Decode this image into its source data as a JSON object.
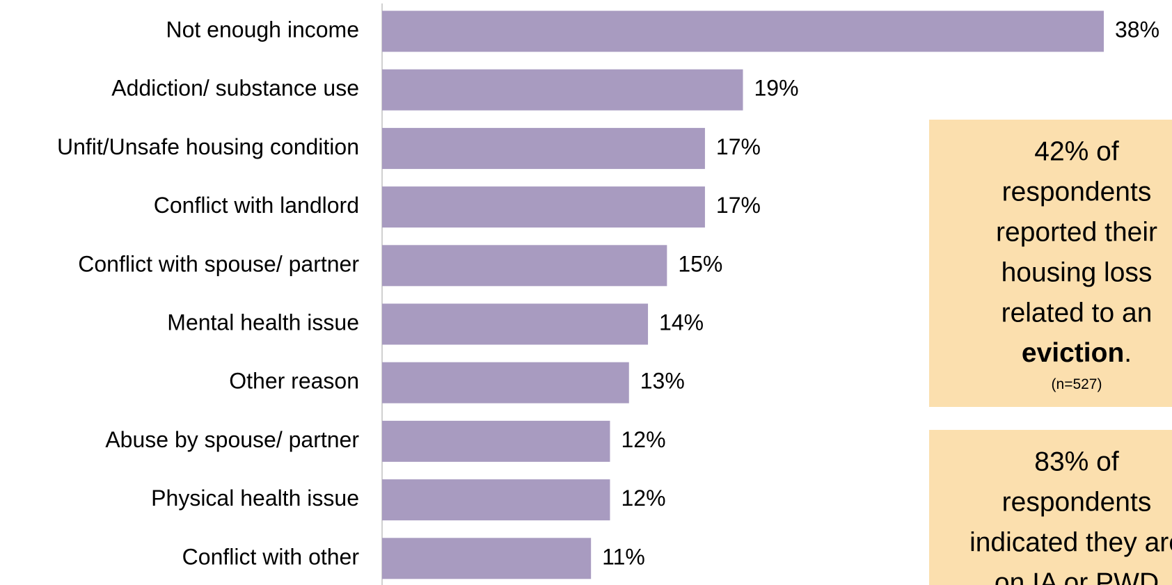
{
  "chart_data": {
    "type": "barh",
    "categories": [
      "Not enough income",
      "Addiction/ substance use",
      "Unfit/Unsafe housing condition",
      "Conflict with landlord",
      "Conflict with spouse/ partner",
      "Mental health issue",
      "Other reason",
      "Abuse by spouse/ partner",
      "Physical health issue",
      "Conflict with other"
    ],
    "values": [
      38,
      19,
      17,
      17,
      15,
      14,
      13,
      12,
      12,
      11
    ],
    "value_labels": [
      "38%",
      "19%",
      "17%",
      "17%",
      "15%",
      "14%",
      "13%",
      "12%",
      "12%",
      "11%"
    ],
    "color": "#a89bc0",
    "xlim": [
      0,
      38
    ],
    "annotations": [
      {
        "lines": [
          "42% of",
          "respondents",
          "reported their",
          "housing loss",
          "related to an"
        ],
        "emphasis": "eviction",
        "emphasis_end": ".",
        "note": "(n=527)",
        "color": "#fbdfae"
      },
      {
        "lines": [
          "83% of",
          "respondents",
          "indicated they are",
          "on IA or PWD"
        ],
        "color": "#fbdfae"
      }
    ]
  }
}
